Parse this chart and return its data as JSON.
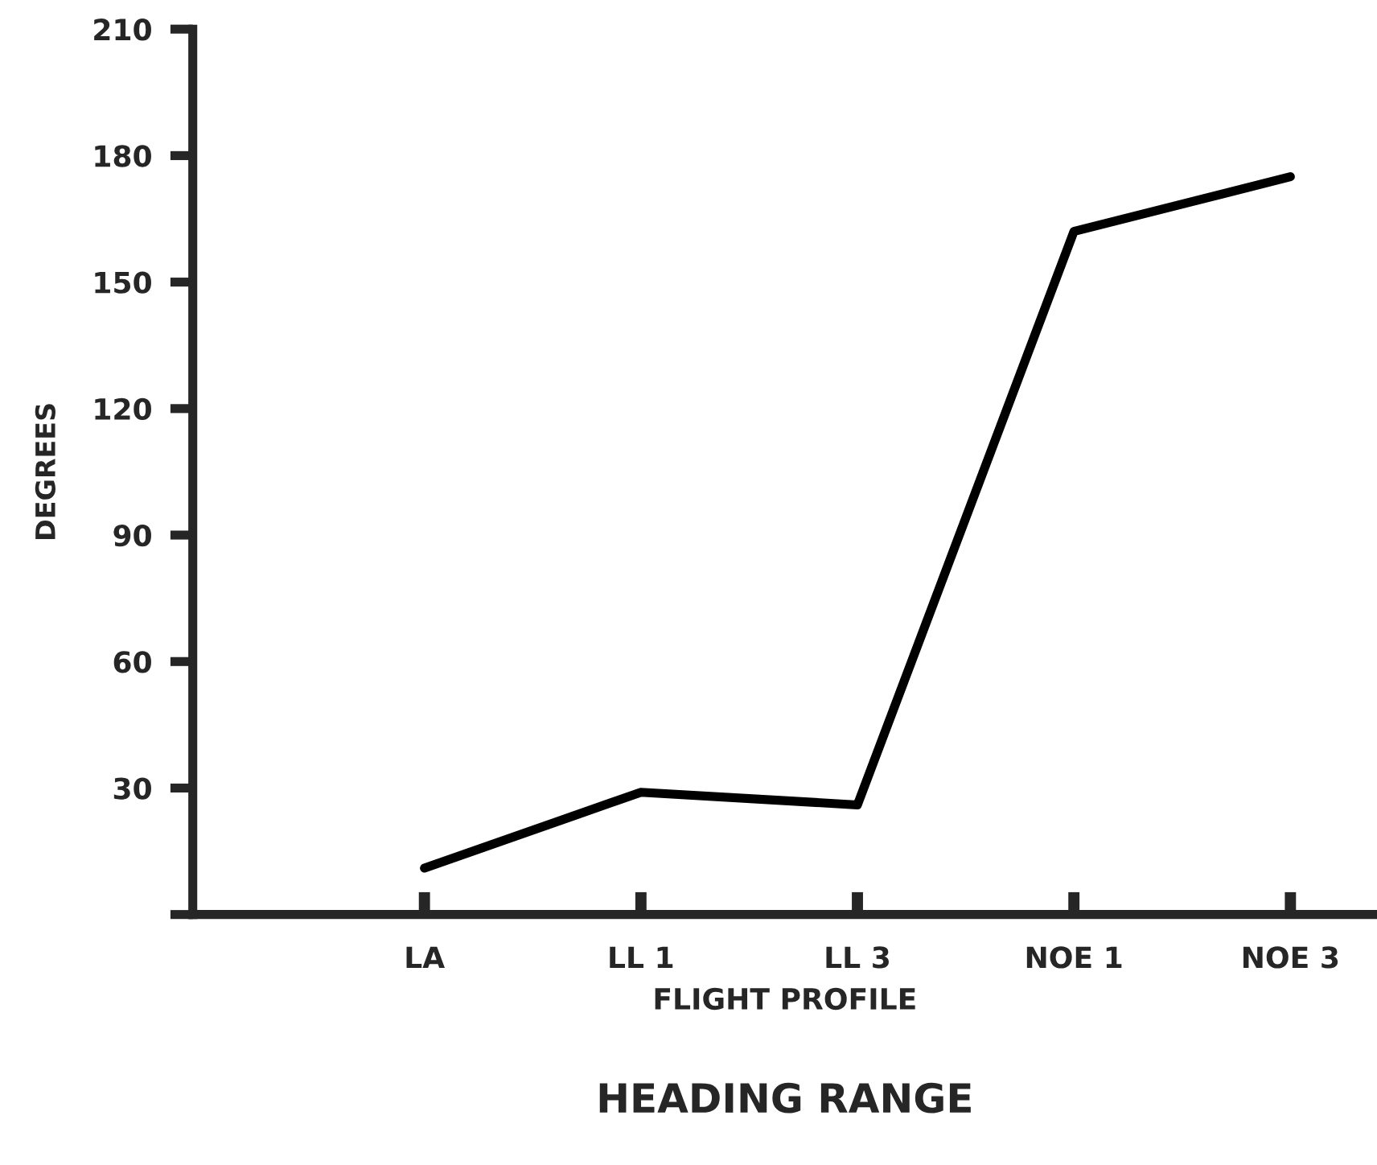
{
  "chart_data": {
    "type": "line",
    "title": "HEADING RANGE",
    "xlabel": "FLIGHT PROFILE",
    "ylabel": "DEGREES",
    "categories": [
      "LA",
      "LL 1",
      "LL 3",
      "NOE 1",
      "NOE 3"
    ],
    "series": [
      {
        "color": "#000000",
        "values": [
          11,
          29,
          26,
          162,
          175
        ]
      }
    ],
    "ylim": [
      0,
      210
    ],
    "yticks": [
      {
        "value": 0,
        "label": null
      },
      30,
      60,
      90,
      120,
      150,
      180,
      210
    ],
    "grid": false,
    "marker": "none",
    "line_style": "solid"
  }
}
